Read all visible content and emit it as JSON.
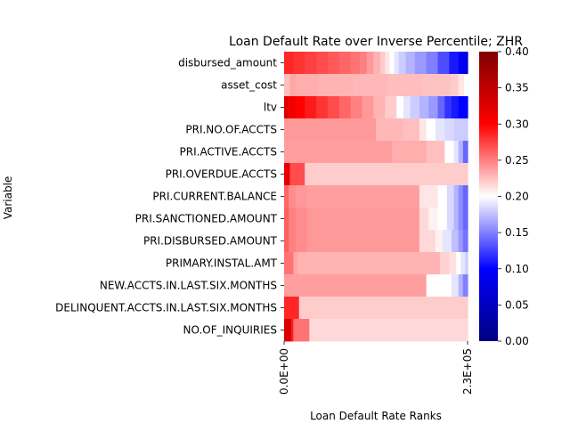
{
  "chart_data": {
    "type": "heatmap",
    "title": "Loan Default Rate over Inverse Percentile; ZHR",
    "xlabel": "Loan Default Rate Ranks",
    "ylabel": "Variable",
    "xlim": [
      0,
      230000
    ],
    "x_ticks": [
      {
        "value": 0,
        "label": "0.0E+00"
      },
      {
        "value": 230000,
        "label": "2.3E+05"
      }
    ],
    "colormap": "bwr",
    "color_range": [
      0,
      0.4
    ],
    "colorbar_ticks": [
      {
        "value": 0.0,
        "label": "0.00"
      },
      {
        "value": 0.05,
        "label": "0.05"
      },
      {
        "value": 0.1,
        "label": "0.10"
      },
      {
        "value": 0.15,
        "label": "0.15"
      },
      {
        "value": 0.2,
        "label": "0.20"
      },
      {
        "value": 0.25,
        "label": "0.25"
      },
      {
        "value": 0.3,
        "label": "0.30"
      },
      {
        "value": 0.35,
        "label": "0.35"
      },
      {
        "value": 0.4,
        "label": "0.40"
      }
    ],
    "rows": [
      {
        "name": "disbursed_amount",
        "segments": [
          [
            0,
            0.285
          ],
          [
            8,
            0.28
          ],
          [
            18,
            0.275
          ],
          [
            28,
            0.27
          ],
          [
            38,
            0.265
          ],
          [
            48,
            0.26
          ],
          [
            58,
            0.255
          ],
          [
            66,
            0.25
          ],
          [
            72,
            0.24
          ],
          [
            78,
            0.23
          ],
          [
            84,
            0.22
          ],
          [
            88,
            0.21
          ],
          [
            92,
            0.2
          ],
          [
            96,
            0.19
          ],
          [
            100,
            0.18
          ],
          [
            106,
            0.17
          ],
          [
            114,
            0.16
          ],
          [
            124,
            0.15
          ],
          [
            134,
            0.13
          ],
          [
            144,
            0.11
          ],
          [
            152,
            0.09
          ],
          [
            156,
            0.08
          ],
          [
            160,
            0.08
          ]
        ]
      },
      {
        "name": "asset_cost",
        "segments": [
          [
            0,
            0.225
          ],
          [
            5,
            0.235
          ],
          [
            10,
            0.232
          ],
          [
            30,
            0.23
          ],
          [
            60,
            0.228
          ],
          [
            90,
            0.226
          ],
          [
            120,
            0.224
          ],
          [
            145,
            0.22
          ],
          [
            152,
            0.21
          ],
          [
            157,
            0.2
          ],
          [
            160,
            0.2
          ]
        ]
      },
      {
        "name": "ltv",
        "segments": [
          [
            0,
            0.33
          ],
          [
            3,
            0.31
          ],
          [
            10,
            0.3
          ],
          [
            18,
            0.29
          ],
          [
            28,
            0.28
          ],
          [
            38,
            0.27
          ],
          [
            48,
            0.26
          ],
          [
            58,
            0.25
          ],
          [
            68,
            0.24
          ],
          [
            78,
            0.23
          ],
          [
            88,
            0.22
          ],
          [
            98,
            0.2
          ],
          [
            104,
            0.19
          ],
          [
            110,
            0.18
          ],
          [
            118,
            0.17
          ],
          [
            126,
            0.16
          ],
          [
            134,
            0.14
          ],
          [
            140,
            0.12
          ],
          [
            146,
            0.11
          ],
          [
            152,
            0.1
          ],
          [
            160,
            0.1
          ]
        ]
      },
      {
        "name": "PRI.NO.OF.ACCTS",
        "segments": [
          [
            0,
            0.24
          ],
          [
            80,
            0.228
          ],
          [
            104,
            0.225
          ],
          [
            118,
            0.21
          ],
          [
            124,
            0.2
          ],
          [
            132,
            0.19
          ],
          [
            140,
            0.185
          ],
          [
            148,
            0.18
          ],
          [
            160,
            0.18
          ]
        ]
      },
      {
        "name": "PRI.ACTIVE.ACCTS",
        "segments": [
          [
            0,
            0.238
          ],
          [
            94,
            0.232
          ],
          [
            124,
            0.225
          ],
          [
            140,
            0.2
          ],
          [
            148,
            0.19
          ],
          [
            152,
            0.17
          ],
          [
            156,
            0.14
          ],
          [
            160,
            0.14
          ]
        ]
      },
      {
        "name": "PRI.OVERDUE.ACCTS",
        "segments": [
          [
            0,
            0.32
          ],
          [
            5,
            0.27
          ],
          [
            18,
            0.22
          ],
          [
            160,
            0.22
          ]
        ]
      },
      {
        "name": "PRI.CURRENT.BALANCE",
        "segments": [
          [
            0,
            0.26
          ],
          [
            4,
            0.245
          ],
          [
            10,
            0.24
          ],
          [
            20,
            0.238
          ],
          [
            118,
            0.21
          ],
          [
            134,
            0.2
          ],
          [
            142,
            0.185
          ],
          [
            148,
            0.17
          ],
          [
            152,
            0.155
          ],
          [
            156,
            0.14
          ],
          [
            160,
            0.14
          ]
        ]
      },
      {
        "name": "PRI.SANCTIONED.AMOUNT",
        "segments": [
          [
            0,
            0.262
          ],
          [
            4,
            0.25
          ],
          [
            10,
            0.245
          ],
          [
            20,
            0.24
          ],
          [
            118,
            0.215
          ],
          [
            126,
            0.205
          ],
          [
            134,
            0.2
          ],
          [
            142,
            0.185
          ],
          [
            148,
            0.17
          ],
          [
            152,
            0.155
          ],
          [
            156,
            0.14
          ],
          [
            160,
            0.14
          ]
        ]
      },
      {
        "name": "PRI.DISBURSED.AMOUNT",
        "segments": [
          [
            0,
            0.262
          ],
          [
            4,
            0.25
          ],
          [
            10,
            0.245
          ],
          [
            20,
            0.24
          ],
          [
            118,
            0.215
          ],
          [
            132,
            0.205
          ],
          [
            138,
            0.19
          ],
          [
            146,
            0.175
          ],
          [
            152,
            0.16
          ],
          [
            156,
            0.145
          ],
          [
            160,
            0.145
          ]
        ]
      },
      {
        "name": "PRIMARY.INSTAL.AMT",
        "segments": [
          [
            0,
            0.255
          ],
          [
            8,
            0.235
          ],
          [
            12,
            0.23
          ],
          [
            136,
            0.218
          ],
          [
            144,
            0.212
          ],
          [
            150,
            0.2
          ],
          [
            154,
            0.19
          ],
          [
            158,
            0.18
          ],
          [
            160,
            0.18
          ]
        ]
      },
      {
        "name": "NEW.ACCTS.IN.LAST.SIX.MONTHS",
        "segments": [
          [
            0,
            0.238
          ],
          [
            124,
            0.2
          ],
          [
            146,
            0.19
          ],
          [
            152,
            0.17
          ],
          [
            156,
            0.15
          ],
          [
            160,
            0.15
          ]
        ]
      },
      {
        "name": "DELINQUENT.ACCTS.IN.LAST.SIX.MONTHS",
        "segments": [
          [
            0,
            0.285
          ],
          [
            13,
            0.22
          ],
          [
            160,
            0.22
          ]
        ]
      },
      {
        "name": "NO.OF_INQUIRIES",
        "segments": [
          [
            0,
            0.33
          ],
          [
            6,
            0.29
          ],
          [
            8,
            0.255
          ],
          [
            22,
            0.215
          ],
          [
            160,
            0.215
          ]
        ]
      }
    ]
  }
}
